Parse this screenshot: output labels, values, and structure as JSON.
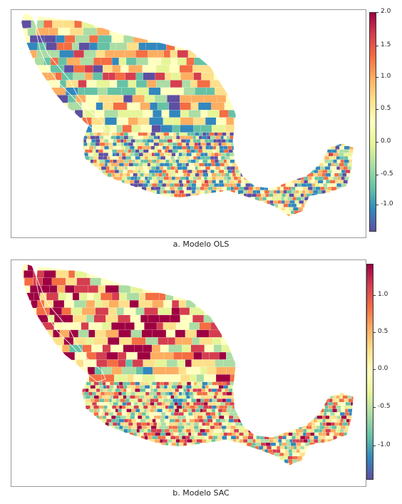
{
  "panels": [
    {
      "caption": "a. Modelo OLS",
      "legend_ticks": [
        "2.0",
        "1.5",
        "1.0",
        "0.5",
        "0.0",
        "-0.5",
        "-1.0"
      ],
      "colors": [
        "#5e4fa2",
        "#3288bd",
        "#66c2a5",
        "#abdda4",
        "#e6f598",
        "#ffffbf",
        "#fee08b",
        "#fdae61",
        "#f46d43",
        "#d53e4f",
        "#9e0142"
      ]
    },
    {
      "caption": "b. Modelo SAC",
      "legend_ticks": [
        "1.0",
        "0.5",
        "0.0",
        "-0.5",
        "-1.0"
      ],
      "colors": [
        "#5e4fa2",
        "#3288bd",
        "#66c2a5",
        "#abdda4",
        "#e6f598",
        "#ffffbf",
        "#fee08b",
        "#fdae61",
        "#f46d43",
        "#d53e4f",
        "#9e0142"
      ]
    }
  ]
}
